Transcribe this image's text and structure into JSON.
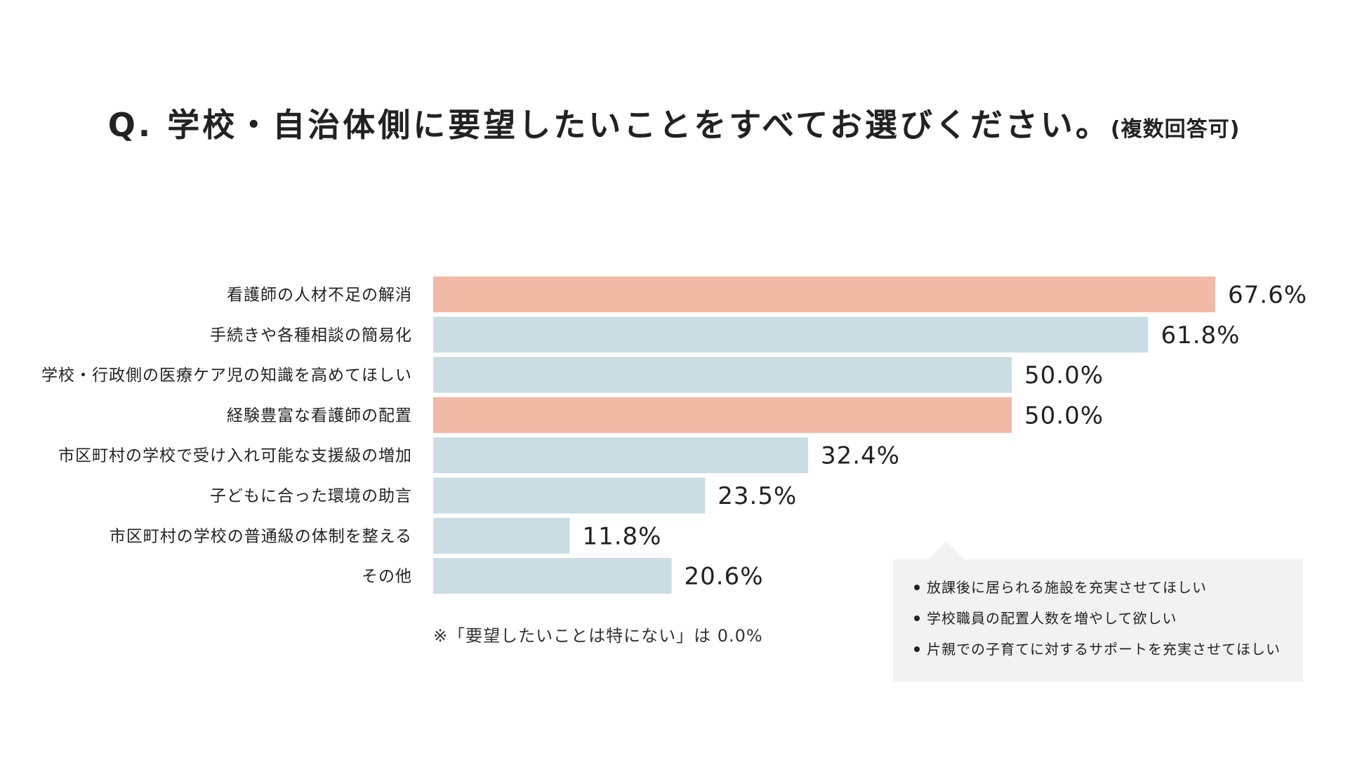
{
  "chart_data": {
    "type": "bar",
    "orientation": "horizontal",
    "title": "Q. 学校・自治体側に要望したいことをすべてお選びください。",
    "subtitle": "(複数回答可)",
    "categories": [
      "看護師の人材不足の解消",
      "手続きや各種相談の簡易化",
      "学校・行政側の医療ケア児の知識を高めてほしい",
      "経験豊富な看護師の配置",
      "市区町村の学校で受け入れ可能な支援級の増加",
      "子どもに合った環境の助言",
      "市区町村の学校の普通級の体制を整える",
      "その他"
    ],
    "values": [
      67.6,
      61.8,
      50.0,
      50.0,
      32.4,
      23.5,
      11.8,
      20.6
    ],
    "value_labels": [
      "67.6%",
      "61.8%",
      "50.0%",
      "50.0%",
      "32.4%",
      "23.5%",
      "11.8%",
      "20.6%"
    ],
    "highlight": [
      true,
      false,
      false,
      true,
      false,
      false,
      false,
      false
    ],
    "xlim": [
      0,
      70
    ],
    "grid": false,
    "legend": "none"
  },
  "colors": {
    "highlight_bar": "#f2b9a6",
    "default_bar": "#c9dde2",
    "note_box_bg": "#f2f2f2",
    "text": "#222222"
  },
  "footnote": "※「要望したいことは特にない」は 0.0%",
  "other_answers": {
    "items": [
      "放課後に居られる施設を充実させてほしい",
      "学校職員の配置人数を増やして欲しい",
      "片親での子育てに対するサポートを充実させてほしい"
    ]
  }
}
